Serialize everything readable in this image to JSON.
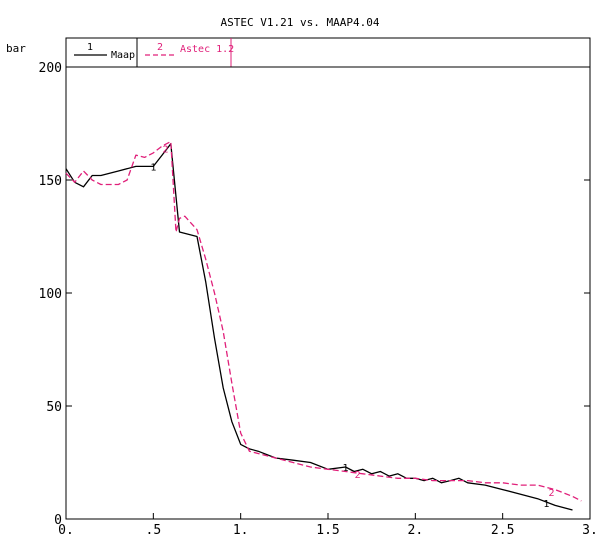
{
  "chart_data": {
    "type": "line",
    "title": "ASTEC V1.21 vs. MAAP4.04",
    "ylabel": "bar",
    "xlabel": "",
    "xlim": [
      0,
      3
    ],
    "ylim": [
      0,
      200
    ],
    "x_ticks": [
      {
        "v": 0,
        "label": "0."
      },
      {
        "v": 0.5,
        "label": ".5"
      },
      {
        "v": 1,
        "label": "1."
      },
      {
        "v": 1.5,
        "label": "1.5"
      },
      {
        "v": 2,
        "label": "2."
      },
      {
        "v": 2.5,
        "label": "2.5"
      },
      {
        "v": 3,
        "label": "3."
      }
    ],
    "y_ticks": [
      {
        "v": 0,
        "label": "0"
      },
      {
        "v": 50,
        "label": "50"
      },
      {
        "v": 100,
        "label": "100"
      },
      {
        "v": 150,
        "label": "150"
      },
      {
        "v": 200,
        "label": "200"
      }
    ],
    "grid": false,
    "legend_position": "top-left",
    "series": [
      {
        "name": "Maap",
        "marker_label": "1",
        "color": "#000000",
        "dash": "solid",
        "x": [
          0,
          0.05,
          0.1,
          0.15,
          0.2,
          0.3,
          0.4,
          0.5,
          0.55,
          0.6,
          0.65,
          0.75,
          0.8,
          0.85,
          0.9,
          0.95,
          1.0,
          1.05,
          1.1,
          1.2,
          1.3,
          1.4,
          1.5,
          1.6,
          1.65,
          1.7,
          1.75,
          1.8,
          1.85,
          1.9,
          1.95,
          2.0,
          2.05,
          2.1,
          2.15,
          2.2,
          2.25,
          2.3,
          2.4,
          2.5,
          2.6,
          2.7,
          2.8,
          2.9
        ],
        "y": [
          155,
          149,
          147,
          152,
          152,
          154,
          156,
          156,
          161,
          166,
          127,
          125,
          105,
          80,
          58,
          43,
          33,
          31,
          30,
          27,
          26,
          25,
          22,
          23,
          21,
          22,
          20,
          21,
          19,
          20,
          18,
          18,
          17,
          18,
          16,
          17,
          18,
          16,
          15,
          13,
          11,
          9,
          6,
          4
        ],
        "markers": [
          {
            "x": 0.5,
            "y": 156
          },
          {
            "x": 1.6,
            "y": 23
          },
          {
            "x": 2.75,
            "y": 7
          }
        ]
      },
      {
        "name": "Astec 1.2",
        "marker_label": "2",
        "color": "#e0207a",
        "dash": "dashed",
        "x": [
          0,
          0.05,
          0.1,
          0.15,
          0.2,
          0.25,
          0.3,
          0.35,
          0.4,
          0.45,
          0.5,
          0.55,
          0.6,
          0.63,
          0.65,
          0.68,
          0.75,
          0.8,
          0.85,
          0.9,
          0.95,
          1.0,
          1.05,
          1.1,
          1.2,
          1.3,
          1.4,
          1.5,
          1.6,
          1.7,
          1.8,
          1.9,
          2.0,
          2.1,
          2.2,
          2.3,
          2.4,
          2.5,
          2.6,
          2.7,
          2.8,
          2.9,
          2.95
        ],
        "y": [
          153,
          149,
          154,
          150,
          148,
          148,
          148,
          150,
          161,
          160,
          162,
          165,
          167,
          127,
          133,
          134,
          128,
          115,
          100,
          83,
          60,
          38,
          30,
          29,
          27,
          25,
          23,
          22,
          21,
          20,
          19,
          18,
          18,
          17,
          17,
          17,
          16,
          16,
          15,
          15,
          13,
          10,
          8
        ],
        "markers": [
          {
            "x": 0.57,
            "y": 164
          },
          {
            "x": 1.67,
            "y": 20
          },
          {
            "x": 2.78,
            "y": 12
          }
        ]
      }
    ]
  }
}
